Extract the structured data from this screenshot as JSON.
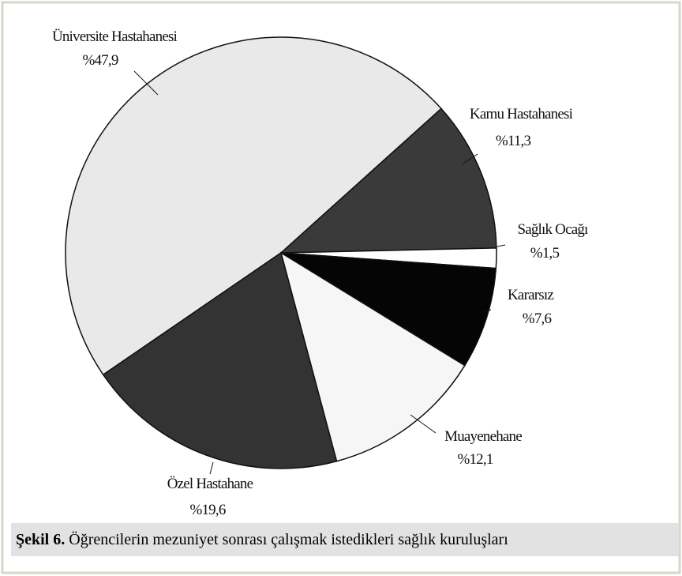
{
  "chart_data": {
    "type": "pie",
    "categories": [
      "Üniversite Hastahanesi",
      "Kamu Hastahanesi",
      "Sağlık Ocağı",
      "Kararsız",
      "Muayenehane",
      "Özel Hastahane"
    ],
    "values": [
      47.9,
      11.3,
      1.5,
      7.6,
      12.1,
      19.6
    ],
    "value_labels": [
      "%47,9",
      "%11,3",
      "%1,5",
      "%7,6",
      "%12,1",
      "%19,6"
    ],
    "colors": [
      "#e9e9e9",
      "#3a3a3a",
      "#ffffff",
      "#050505",
      "#f6f6f6",
      "#333333"
    ],
    "caption": {
      "label": "Şekil 6.",
      "text": "Öğrencilerin mezuniyet sonrası çalışmak istedikleri sağlık kuruluşları"
    }
  }
}
